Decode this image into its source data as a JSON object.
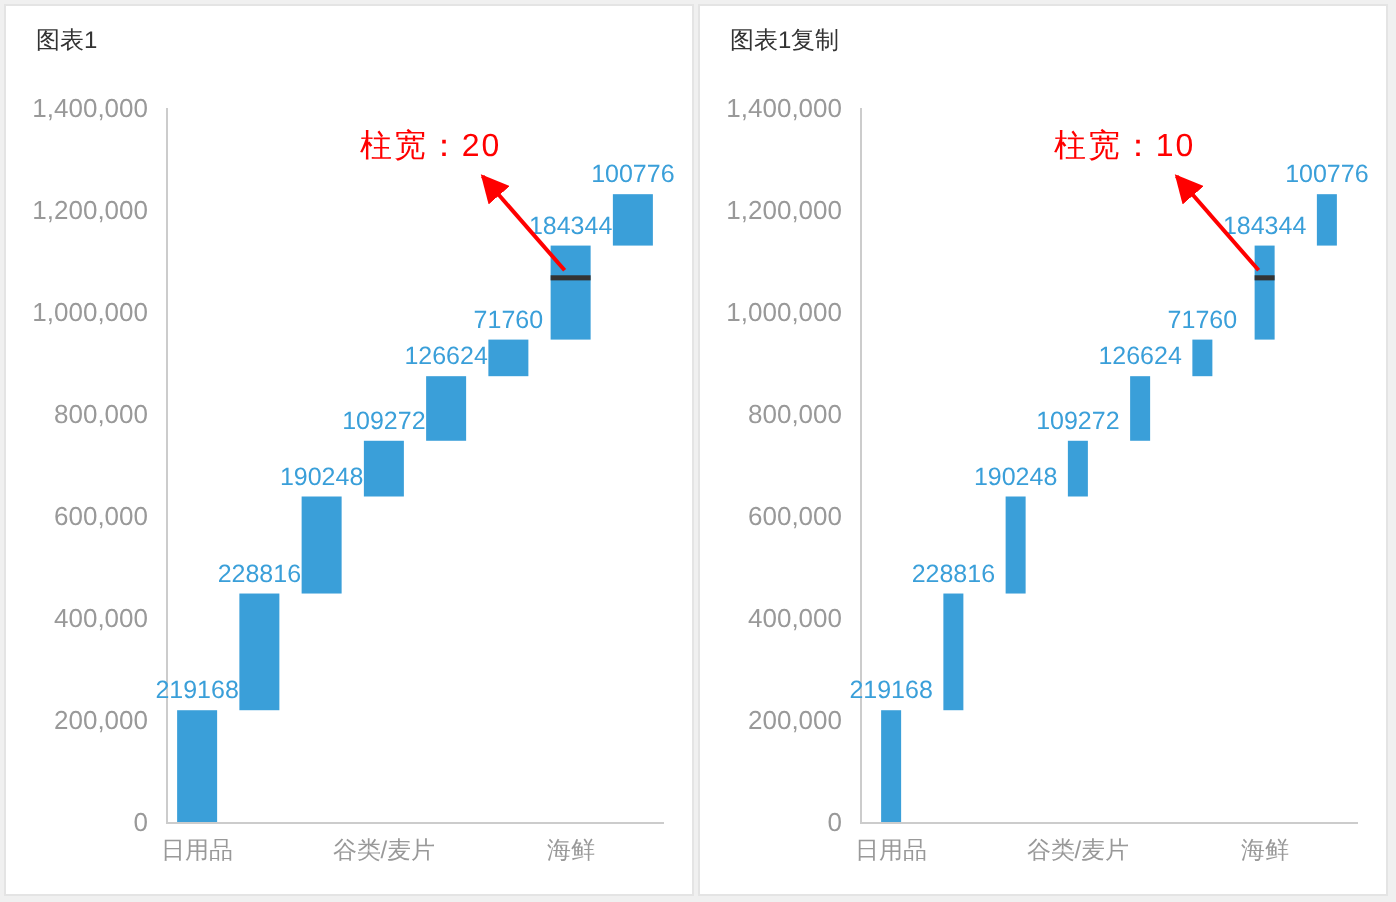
{
  "chart_data": [
    {
      "type": "bar",
      "title": "图表1",
      "categories": [
        "日用品",
        null,
        null,
        "谷类/麦片",
        null,
        null,
        "海鲜",
        null
      ],
      "ylim": [
        0,
        1400000
      ],
      "yticks": [
        0,
        {
          "value": 200000,
          "label": "200,000"
        },
        {
          "value": 400000,
          "label": "400,000"
        },
        {
          "value": 600000,
          "label": "600,000"
        },
        {
          "value": 800000,
          "label": "800,000"
        },
        {
          "value": 1000000,
          "label": "1,000,000"
        },
        {
          "value": 1200000,
          "label": "1,200,000"
        },
        {
          "value": 1400000,
          "label": "1,400,000"
        }
      ],
      "series": [
        {
          "color": "#3a9fd9",
          "base": [
            0,
            219168,
            447984,
            638232,
            747504,
            874128,
            945888,
            1130232
          ],
          "values": [
            219168,
            228816,
            190248,
            109272,
            126624,
            71760,
            184344,
            100776
          ],
          "value_labels": [
            "219168",
            "228816",
            "190248",
            "109272",
            "126624",
            "71760",
            "184344",
            "100776"
          ]
        },
        {
          "color": "#333333",
          "base": [
            null,
            null,
            null,
            null,
            null,
            null,
            1062000,
            null
          ],
          "values": [
            null,
            null,
            null,
            null,
            null,
            null,
            10000,
            null
          ]
        }
      ],
      "annotations": [
        {
          "text": "柱宽：20",
          "x": "海鲜",
          "y": 1070000
        }
      ]
    },
    {
      "type": "bar",
      "title": "图表1复制",
      "categories": [
        "日用品",
        null,
        null,
        "谷类/麦片",
        null,
        null,
        "海鲜",
        null
      ],
      "ylim": [
        0,
        1400000
      ],
      "yticks": [
        0,
        {
          "value": 200000,
          "label": "200,000"
        },
        {
          "value": 400000,
          "label": "400,000"
        },
        {
          "value": 600000,
          "label": "600,000"
        },
        {
          "value": 800000,
          "label": "800,000"
        },
        {
          "value": 1000000,
          "label": "1,000,000"
        },
        {
          "value": 1200000,
          "label": "1,200,000"
        },
        {
          "value": 1400000,
          "label": "1,400,000"
        }
      ],
      "series": [
        {
          "color": "#3a9fd9",
          "base": [
            0,
            219168,
            447984,
            638232,
            747504,
            874128,
            945888,
            1130232
          ],
          "values": [
            219168,
            228816,
            190248,
            109272,
            126624,
            71760,
            184344,
            100776
          ],
          "value_labels": [
            "219168",
            "228816",
            "190248",
            "109272",
            "126624",
            "71760",
            "184344",
            "100776"
          ]
        },
        {
          "color": "#333333",
          "base": [
            null,
            null,
            null,
            null,
            null,
            null,
            1062000,
            null
          ],
          "values": [
            null,
            null,
            null,
            null,
            null,
            null,
            10000,
            null
          ]
        }
      ],
      "annotations": [
        {
          "text": "柱宽：10",
          "x": "海鲜",
          "y": 1070000
        }
      ]
    }
  ]
}
